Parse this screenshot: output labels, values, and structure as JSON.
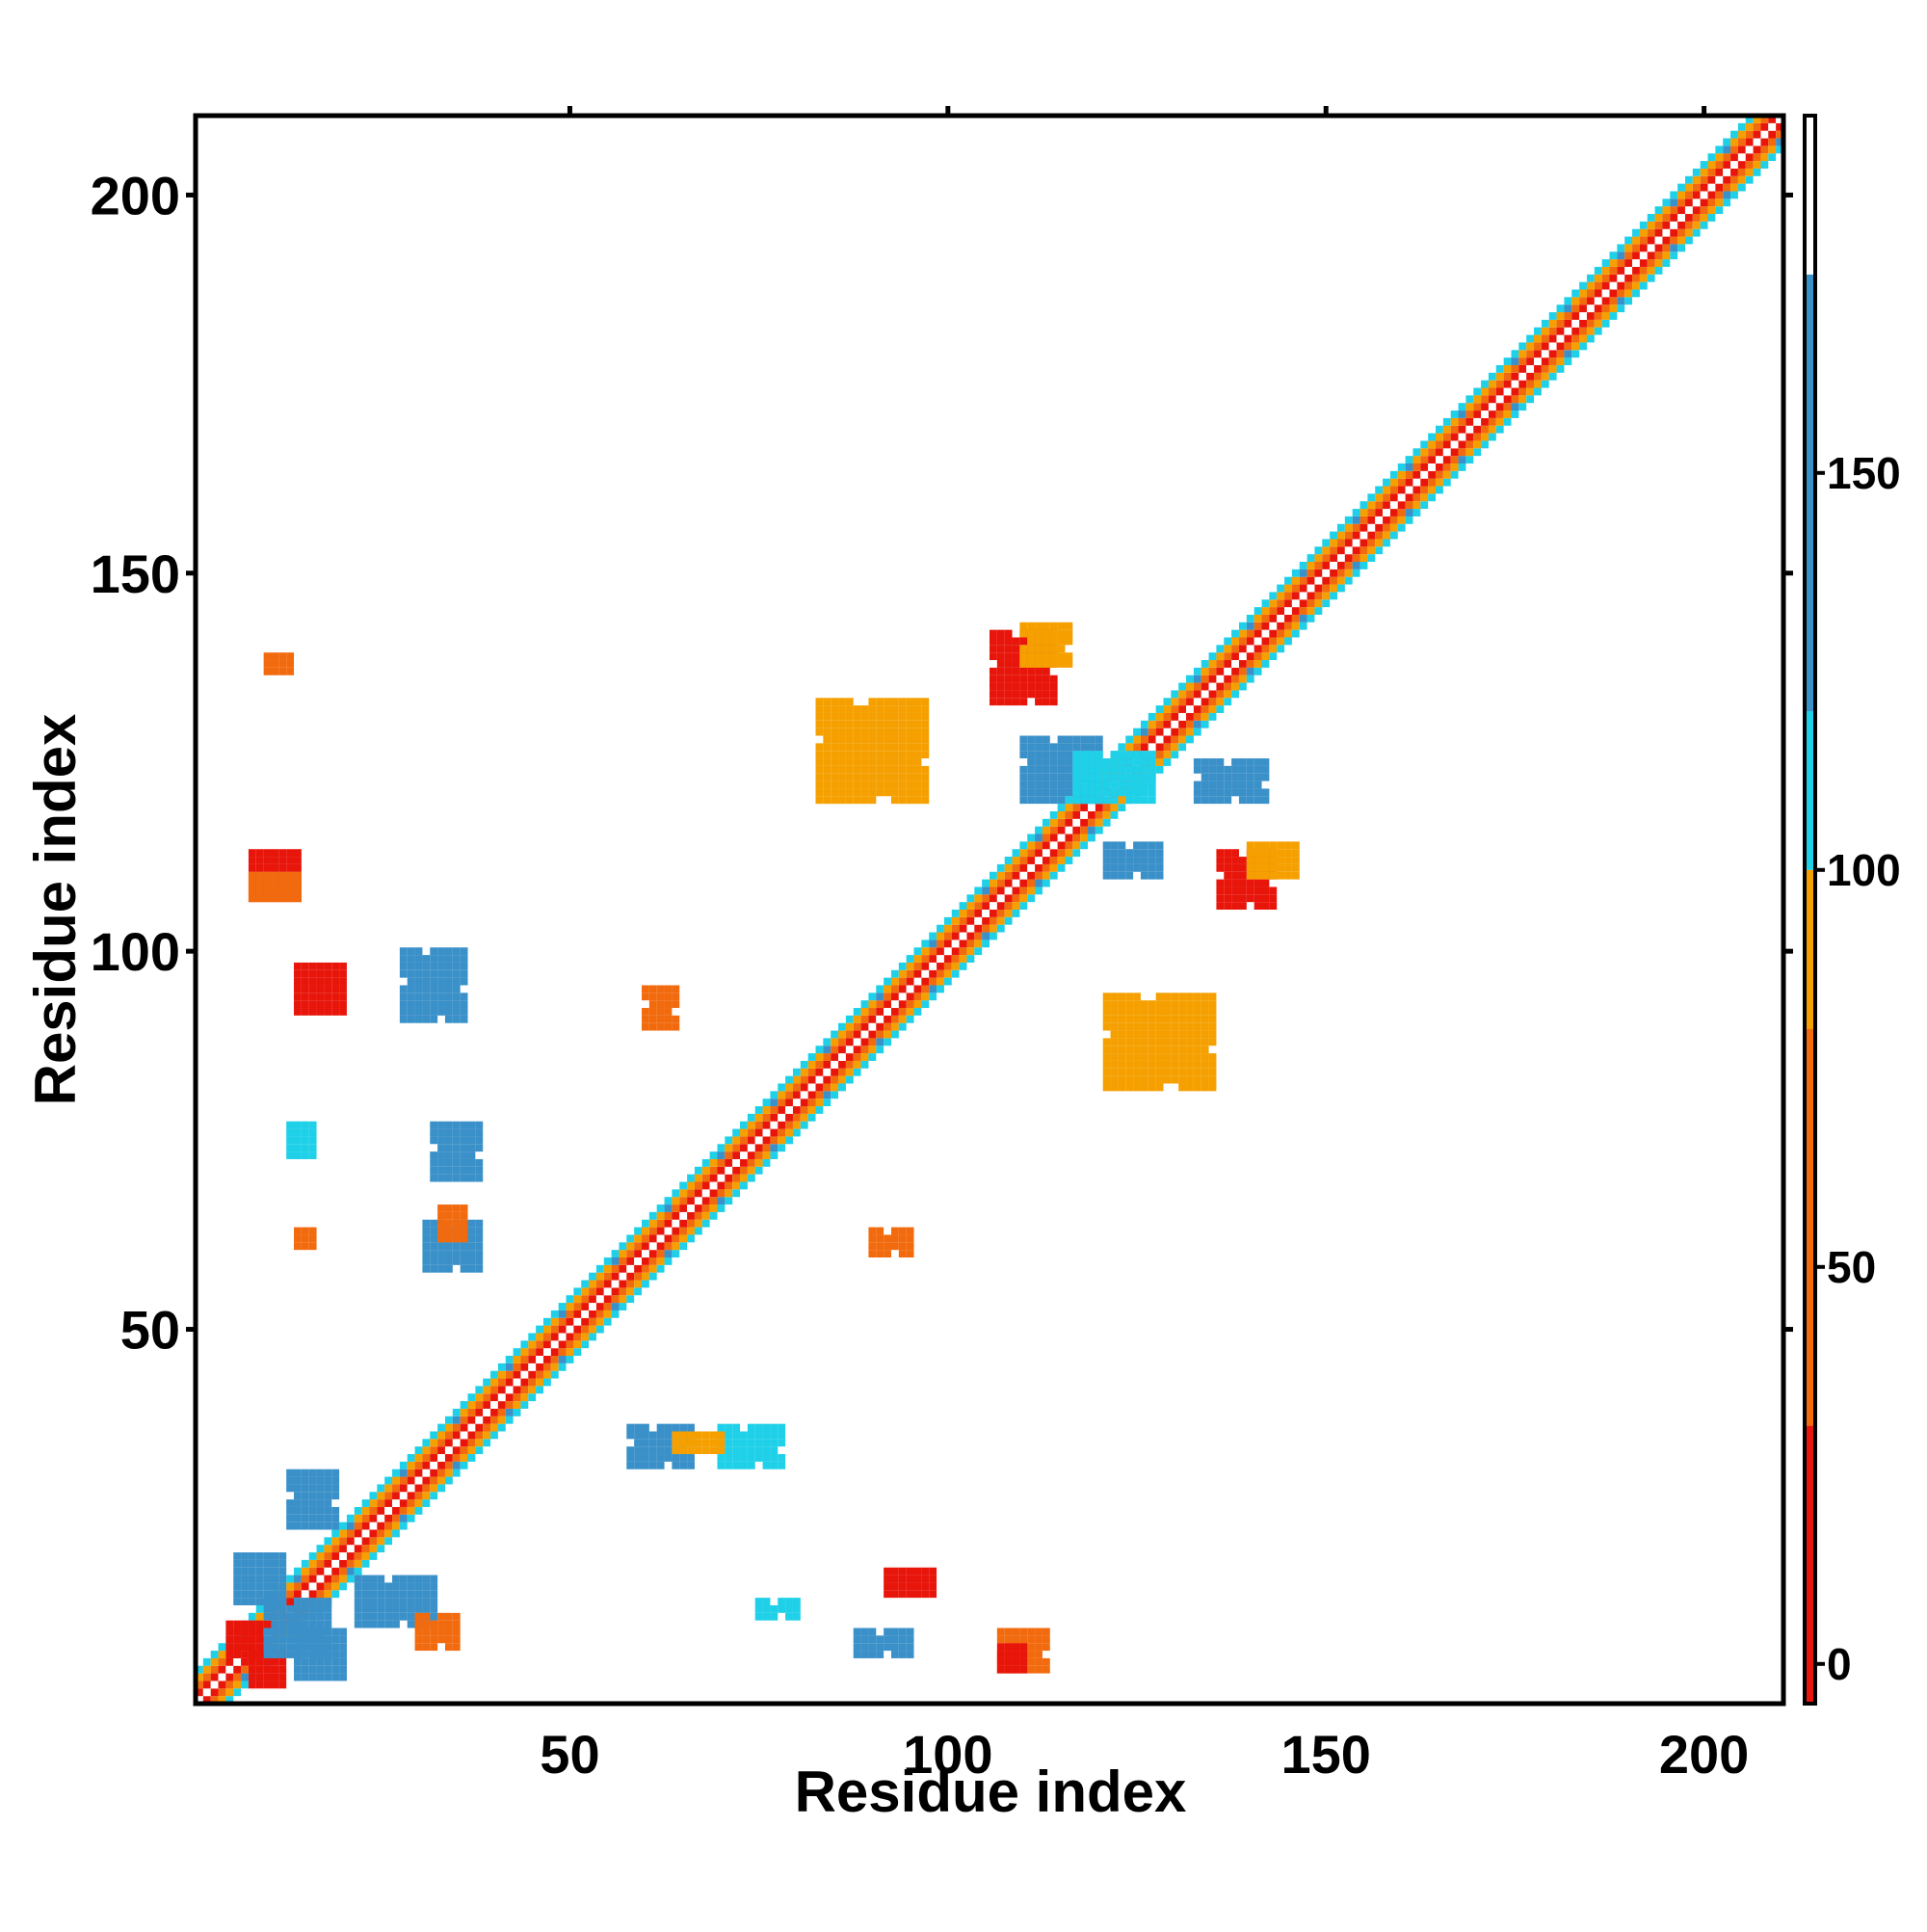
{
  "chart_data": {
    "type": "heatmap",
    "title": "",
    "xlabel": "Residue index",
    "ylabel": "Residue index",
    "xlim": [
      1,
      210
    ],
    "ylim": [
      1,
      210
    ],
    "x_ticks": [
      50,
      100,
      150,
      200
    ],
    "y_ticks": [
      50,
      100,
      150,
      200
    ],
    "colorbar": {
      "range": [
        -5,
        195
      ],
      "ticks": [
        0,
        50,
        100,
        150
      ],
      "bands": [
        {
          "from": -5,
          "to": 30,
          "color": "#e8150b"
        },
        {
          "from": 30,
          "to": 80,
          "color": "#f26a0e"
        },
        {
          "from": 80,
          "to": 100,
          "color": "#f5a000"
        },
        {
          "from": 100,
          "to": 120,
          "color": "#1ed0e8"
        },
        {
          "from": 120,
          "to": 175,
          "color": "#3a90c8"
        },
        {
          "from": 175,
          "to": 195,
          "color": "#ffffff"
        }
      ]
    },
    "diagonal_band": {
      "start": 1,
      "end": 210
    },
    "contact_blocks": [
      {
        "x": [
          8,
          12
        ],
        "y": [
          3,
          7
        ],
        "color": "#e8150b"
      },
      {
        "x": [
          5,
          9
        ],
        "y": [
          7,
          11
        ],
        "color": "#e8150b"
      },
      {
        "x": [
          10,
          18
        ],
        "y": [
          7,
          14
        ],
        "color": "#3a90c8"
      },
      {
        "x": [
          6,
          12
        ],
        "y": [
          14,
          20
        ],
        "color": "#3a90c8"
      },
      {
        "x": [
          14,
          20
        ],
        "y": [
          4,
          10
        ],
        "color": "#3a90c8"
      },
      {
        "x": [
          13,
          19
        ],
        "y": [
          24,
          31
        ],
        "color": "#3a90c8"
      },
      {
        "x": [
          22,
          32
        ],
        "y": [
          11,
          17
        ],
        "color": "#3a90c8"
      },
      {
        "x": [
          30,
          35
        ],
        "y": [
          8,
          12
        ],
        "color": "#f26a0e"
      },
      {
        "x": [
          58,
          66
        ],
        "y": [
          32,
          37
        ],
        "color": "#3a90c8"
      },
      {
        "x": [
          70,
          78
        ],
        "y": [
          32,
          37
        ],
        "color": "#1ed0e8"
      },
      {
        "x": [
          64,
          70
        ],
        "y": [
          34,
          36
        ],
        "color": "#f5a000"
      },
      {
        "x": [
          107,
          113
        ],
        "y": [
          5,
          10
        ],
        "color": "#f26a0e"
      },
      {
        "x": [
          107,
          110
        ],
        "y": [
          5,
          8
        ],
        "color": "#e8150b"
      },
      {
        "x": [
          92,
          98
        ],
        "y": [
          15,
          18
        ],
        "color": "#e8150b"
      },
      {
        "x": [
          88,
          95
        ],
        "y": [
          7,
          10
        ],
        "color": "#3a90c8"
      },
      {
        "x": [
          32,
          38
        ],
        "y": [
          70,
          77
        ],
        "color": "#3a90c8"
      },
      {
        "x": [
          31,
          38
        ],
        "y": [
          58,
          64
        ],
        "color": "#3a90c8"
      },
      {
        "x": [
          33,
          36
        ],
        "y": [
          62,
          66
        ],
        "color": "#f26a0e"
      },
      {
        "x": [
          13,
          16
        ],
        "y": [
          73,
          77
        ],
        "color": "#1ed0e8"
      },
      {
        "x": [
          14,
          16
        ],
        "y": [
          61,
          63
        ],
        "color": "#f26a0e"
      },
      {
        "x": [
          8,
          14
        ],
        "y": [
          107,
          113
        ],
        "color": "#e8150b"
      },
      {
        "x": [
          8,
          14
        ],
        "y": [
          107,
          110
        ],
        "color": "#f26a0e"
      },
      {
        "x": [
          10,
          13
        ],
        "y": [
          137,
          139
        ],
        "color": "#f26a0e"
      },
      {
        "x": [
          14,
          20
        ],
        "y": [
          92,
          98
        ],
        "color": "#e8150b"
      },
      {
        "x": [
          28,
          36
        ],
        "y": [
          91,
          100
        ],
        "color": "#3a90c8"
      },
      {
        "x": [
          60,
          64
        ],
        "y": [
          90,
          95
        ],
        "color": "#f26a0e"
      },
      {
        "x": [
          106,
          114
        ],
        "y": [
          133,
          142
        ],
        "color": "#e8150b"
      },
      {
        "x": [
          110,
          116
        ],
        "y": [
          138,
          143
        ],
        "color": "#f5a000"
      },
      {
        "x": [
          136,
          143
        ],
        "y": [
          106,
          113
        ],
        "color": "#e8150b"
      },
      {
        "x": [
          140,
          146
        ],
        "y": [
          110,
          114
        ],
        "color": "#f5a000"
      },
      {
        "x": [
          83,
          97
        ],
        "y": [
          120,
          133
        ],
        "color": "#f5a000"
      },
      {
        "x": [
          110,
          120
        ],
        "y": [
          120,
          128
        ],
        "color": "#3a90c8"
      },
      {
        "x": [
          121,
          135
        ],
        "y": [
          82,
          94
        ],
        "color": "#f5a000"
      },
      {
        "x": [
          121,
          128
        ],
        "y": [
          110,
          114
        ],
        "color": "#3a90c8"
      },
      {
        "x": [
          133,
          142
        ],
        "y": [
          120,
          125
        ],
        "color": "#3a90c8"
      },
      {
        "x": [
          75,
          80
        ],
        "y": [
          12,
          14
        ],
        "color": "#1ed0e8"
      },
      {
        "x": [
          90,
          95
        ],
        "y": [
          60,
          63
        ],
        "color": "#f26a0e"
      },
      {
        "x": [
          117,
          127
        ],
        "y": [
          120,
          126
        ],
        "color": "#1ed0e8"
      }
    ]
  }
}
